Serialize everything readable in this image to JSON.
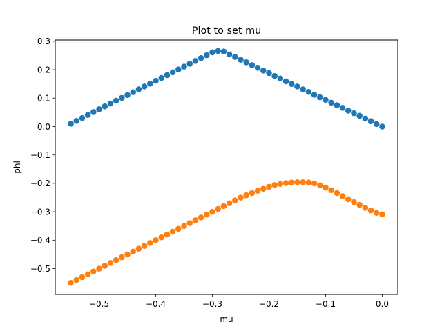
{
  "chart_data": {
    "type": "scatter",
    "title": "Plot to set mu",
    "xlabel": "mu",
    "ylabel": "phi",
    "xlim": [
      -0.5775,
      0.0275
    ],
    "ylim": [
      -0.5909,
      0.3045
    ],
    "xticks": [
      -0.5,
      -0.4,
      -0.3,
      -0.2,
      -0.1,
      0.0
    ],
    "xtick_labels": [
      "−0.5",
      "−0.4",
      "−0.3",
      "−0.2",
      "−0.1",
      "0.0"
    ],
    "yticks": [
      -0.5,
      -0.4,
      -0.3,
      -0.2,
      -0.1,
      0.0,
      0.1,
      0.2,
      0.3
    ],
    "ytick_labels": [
      "−0.5",
      "−0.4",
      "−0.3",
      "−0.2",
      "−0.1",
      "0.0",
      "0.1",
      "0.2",
      "0.3"
    ],
    "grid": false,
    "legend": false,
    "x": [
      -0.55,
      -0.54,
      -0.53,
      -0.52,
      -0.51,
      -0.5,
      -0.49,
      -0.48,
      -0.47,
      -0.46,
      -0.45,
      -0.44,
      -0.43,
      -0.42,
      -0.41,
      -0.4,
      -0.39,
      -0.38,
      -0.37,
      -0.36,
      -0.35,
      -0.34,
      -0.33,
      -0.32,
      -0.31,
      -0.3,
      -0.29,
      -0.28,
      -0.27,
      -0.26,
      -0.25,
      -0.24,
      -0.23,
      -0.22,
      -0.21,
      -0.2,
      -0.19,
      -0.18,
      -0.17,
      -0.16,
      -0.15,
      -0.14,
      -0.13,
      -0.12,
      -0.11,
      -0.1,
      -0.09,
      -0.08,
      -0.07,
      -0.06,
      -0.05,
      -0.04,
      -0.03,
      -0.02,
      -0.01,
      0.0
    ],
    "series": [
      {
        "color": "#1f77b4",
        "values": [
          0.01,
          0.02,
          0.03,
          0.041,
          0.051,
          0.061,
          0.071,
          0.081,
          0.091,
          0.101,
          0.111,
          0.121,
          0.131,
          0.141,
          0.151,
          0.161,
          0.171,
          0.181,
          0.191,
          0.201,
          0.211,
          0.221,
          0.231,
          0.241,
          0.251,
          0.261,
          0.266,
          0.264,
          0.254,
          0.245,
          0.235,
          0.226,
          0.216,
          0.207,
          0.197,
          0.188,
          0.178,
          0.169,
          0.159,
          0.15,
          0.141,
          0.131,
          0.122,
          0.112,
          0.103,
          0.094,
          0.084,
          0.075,
          0.066,
          0.056,
          0.047,
          0.038,
          0.028,
          0.019,
          0.009,
          0.0
        ]
      },
      {
        "color": "#ff7f0e",
        "values": [
          -0.55,
          -0.54,
          -0.53,
          -0.52,
          -0.51,
          -0.5,
          -0.49,
          -0.48,
          -0.47,
          -0.46,
          -0.45,
          -0.44,
          -0.43,
          -0.42,
          -0.41,
          -0.4,
          -0.39,
          -0.38,
          -0.37,
          -0.36,
          -0.35,
          -0.34,
          -0.33,
          -0.32,
          -0.31,
          -0.3,
          -0.29,
          -0.28,
          -0.27,
          -0.26,
          -0.25,
          -0.242,
          -0.234,
          -0.226,
          -0.219,
          -0.212,
          -0.206,
          -0.202,
          -0.199,
          -0.197,
          -0.196,
          -0.196,
          -0.197,
          -0.2,
          -0.207,
          -0.215,
          -0.224,
          -0.234,
          -0.245,
          -0.256,
          -0.266,
          -0.276,
          -0.286,
          -0.295,
          -0.304,
          -0.309
        ]
      }
    ]
  }
}
